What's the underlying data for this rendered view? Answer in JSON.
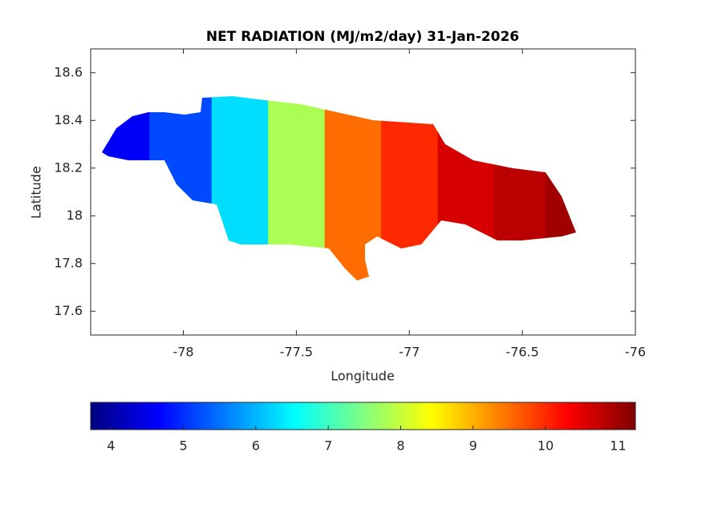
{
  "chart_data": {
    "type": "map",
    "title": "NET RADIATION (MJ/m2/day) 31-Jan-2026",
    "x_label": "Longitude",
    "y_label": "Latitude",
    "xlim": [
      -78.41,
      -76
    ],
    "xticks": [
      -78,
      -77.5,
      -77,
      -76.5,
      -76
    ],
    "ylim": [
      17.5,
      18.7
    ],
    "yticks": [
      17.6,
      17.8,
      18,
      18.2,
      18.4,
      18.6
    ],
    "field": {
      "lon": [
        -78.3,
        -78.0,
        -77.75,
        -77.5,
        -77.25,
        -77.0,
        -76.75,
        -76.5,
        -76.3
      ],
      "values": [
        4.6,
        5.2,
        6.3,
        7.8,
        9.5,
        10.0,
        10.6,
        10.8,
        11.0
      ]
    },
    "colorbar": {
      "clim": [
        3.72,
        11.24
      ],
      "ticks": [
        4,
        5,
        6,
        7,
        8,
        9,
        10,
        11
      ],
      "colormap": "jet"
    }
  }
}
